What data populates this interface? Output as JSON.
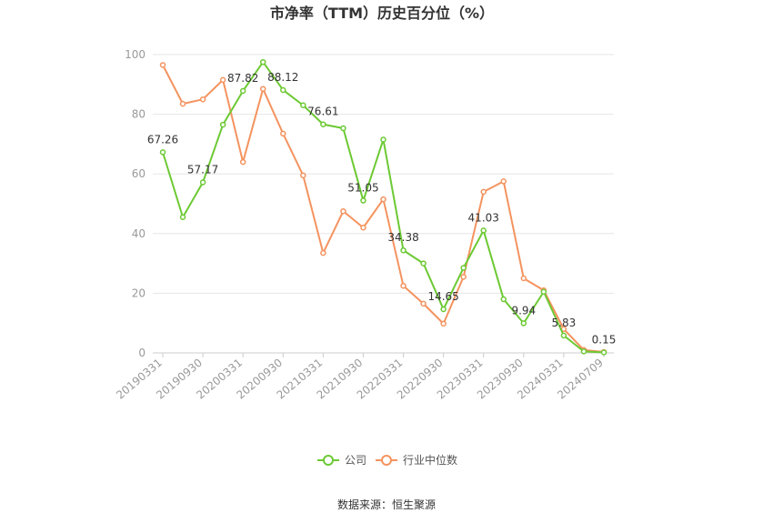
{
  "chart_data": {
    "type": "line",
    "title": "市净率（TTM）历史百分位（%）",
    "source": "数据来源：恒生聚源",
    "ylim": [
      0,
      100
    ],
    "yticks": [
      0,
      20,
      40,
      60,
      80,
      100
    ],
    "x_labels": [
      "20190331",
      "20190930",
      "20200331",
      "20200930",
      "20210331",
      "20210930",
      "20220331",
      "20220930",
      "20230331",
      "20230930",
      "20240331",
      "20240709"
    ],
    "series": [
      {
        "name": "公司",
        "color": "#6cc933",
        "values": [
          67.26,
          45.5,
          57.17,
          76.5,
          87.82,
          97.5,
          88.12,
          83.0,
          76.61,
          75.3,
          51.05,
          71.5,
          34.38,
          30.0,
          14.65,
          28.5,
          41.03,
          18.0,
          9.94,
          20.5,
          5.83,
          0.5,
          0.15
        ]
      },
      {
        "name": "行业中位数",
        "color": "#f4935f",
        "values": [
          96.5,
          83.5,
          85.0,
          91.5,
          64.0,
          88.5,
          73.5,
          59.5,
          33.5,
          47.5,
          42.0,
          51.5,
          22.5,
          16.5,
          9.8,
          25.5,
          54.0,
          57.5,
          25.0,
          21.0,
          8.0,
          1.0,
          0.3
        ]
      }
    ],
    "data_labels": [
      {
        "index": 0,
        "text": "67.26"
      },
      {
        "index": 2,
        "text": "57.17"
      },
      {
        "index": 4,
        "text": "87.82"
      },
      {
        "index": 6,
        "text": "88.12"
      },
      {
        "index": 8,
        "text": "76.61"
      },
      {
        "index": 10,
        "text": "51.05"
      },
      {
        "index": 12,
        "text": "34.38"
      },
      {
        "index": 14,
        "text": "14.65"
      },
      {
        "index": 16,
        "text": "41.03"
      },
      {
        "index": 18,
        "text": "9.94"
      },
      {
        "index": 20,
        "text": "5.83"
      },
      {
        "index": 22,
        "text": "0.15"
      }
    ],
    "legend_position": "bottom-center",
    "grid": true
  }
}
